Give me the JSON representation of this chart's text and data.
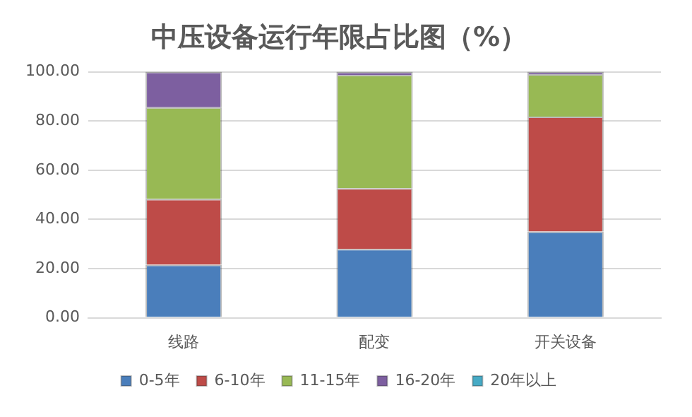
{
  "chart_data": {
    "type": "bar",
    "title": "中压设备运行年限占比图（%）",
    "categories": [
      "线路",
      "配变",
      "开关设备"
    ],
    "stacked": true,
    "ylim": [
      0,
      100
    ],
    "yticks": [
      {
        "value": 0,
        "label": "0.00"
      },
      {
        "value": 20,
        "label": "20.00"
      },
      {
        "value": 40,
        "label": "40.00"
      },
      {
        "value": 60,
        "label": "60.00"
      },
      {
        "value": 80,
        "label": "80.00"
      },
      {
        "value": 100,
        "label": "100.00"
      }
    ],
    "grid": "y",
    "legend": "bottom",
    "series": [
      {
        "name": "0-5年",
        "color": "#4a7ebb",
        "values": [
          21.6,
          28.0,
          35.1
        ]
      },
      {
        "name": "6-10年",
        "color": "#be4b48",
        "values": [
          26.7,
          24.7,
          46.7
        ]
      },
      {
        "name": "11-15年",
        "color": "#98b954",
        "values": [
          37.3,
          46.0,
          17.2
        ]
      },
      {
        "name": "16-20年",
        "color": "#7d5fa0",
        "values": [
          14.4,
          1.3,
          1.0
        ]
      },
      {
        "name": "20年以上",
        "color": "#46aac5",
        "values": [
          0,
          0,
          0
        ]
      }
    ]
  }
}
